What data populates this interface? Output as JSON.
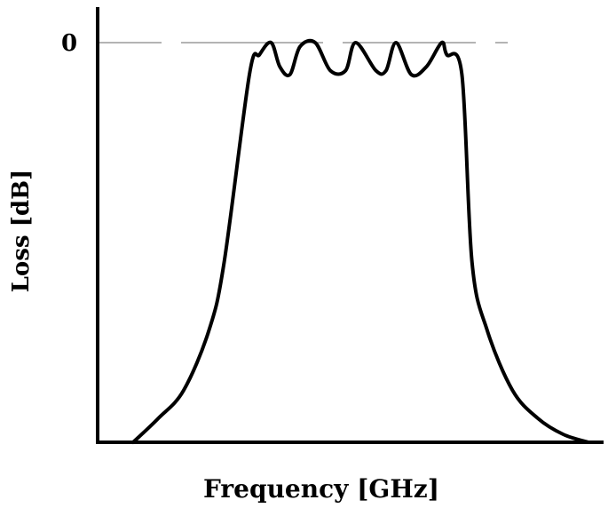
{
  "chart_data": {
    "type": "line",
    "title": "",
    "xlabel": "Frequency [GHz]",
    "ylabel": "Loss [dB]",
    "xlim": [
      0,
      1
    ],
    "ylim": [
      -1,
      0
    ],
    "yticks": [
      {
        "value": 0,
        "label": "0"
      }
    ],
    "grid": false,
    "legend": "none",
    "colors": {
      "curve": "#000000",
      "axes": "#000000",
      "reference_line": "#888888"
    },
    "reference_line": {
      "y": 0,
      "style": "dashed"
    },
    "series": [
      {
        "x": [
          0.07,
          0.12,
          0.17,
          0.22,
          0.25,
          0.3,
          0.32,
          0.343,
          0.36,
          0.38,
          0.4,
          0.43,
          0.46,
          0.49,
          0.51,
          0.55,
          0.57,
          0.59,
          0.62,
          0.65,
          0.68,
          0.69,
          0.72,
          0.74,
          0.77,
          0.82,
          0.87,
          0.92,
          0.97
        ],
        "y": [
          -1.0,
          -0.94,
          -0.87,
          -0.72,
          -0.55,
          -0.08,
          -0.03,
          0.0,
          -0.06,
          -0.08,
          -0.01,
          0.0,
          -0.07,
          -0.07,
          0.0,
          -0.07,
          -0.07,
          0.0,
          -0.08,
          -0.06,
          0.0,
          -0.03,
          -0.08,
          -0.55,
          -0.72,
          -0.87,
          -0.94,
          -0.98,
          -1.0
        ]
      }
    ]
  }
}
